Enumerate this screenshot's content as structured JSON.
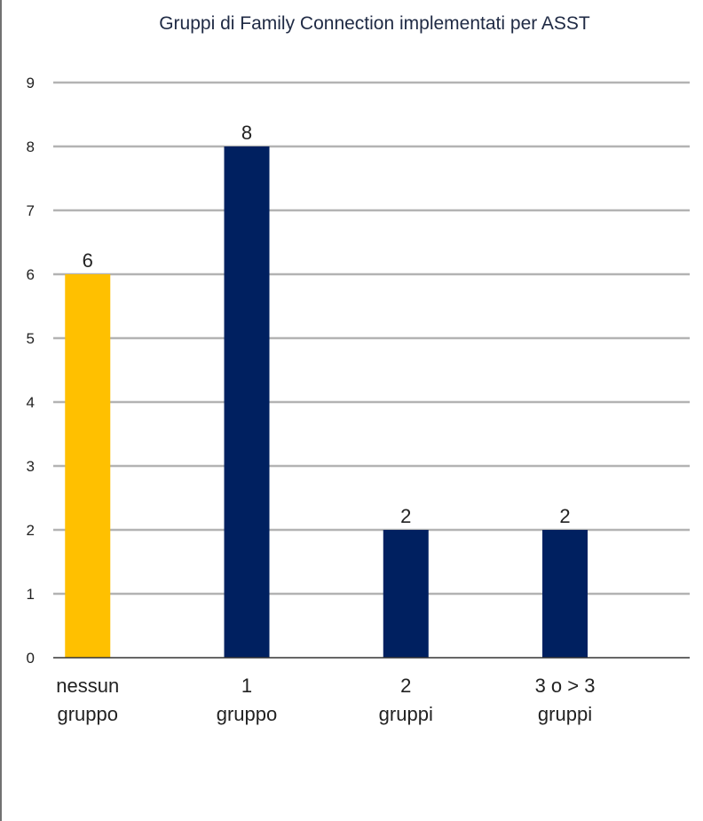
{
  "chart_data": {
    "type": "bar",
    "title": "Gruppi di Family Connection implementati per ASST",
    "categories": [
      [
        "nessun",
        "gruppo"
      ],
      [
        "1",
        "gruppo"
      ],
      [
        "2",
        "gruppi"
      ],
      [
        "3 o > 3",
        "gruppi"
      ]
    ],
    "values": [
      6,
      8,
      2,
      2
    ],
    "data_labels": [
      "6",
      "8",
      "2",
      "2"
    ],
    "bar_colors": [
      "#ffc000",
      "#002060",
      "#002060",
      "#002060"
    ],
    "ylim": [
      0,
      9
    ],
    "yticks": [
      "0",
      "1",
      "2",
      "3",
      "4",
      "5",
      "6",
      "7",
      "8",
      "9"
    ],
    "grid": true,
    "legend": "none",
    "xlabel": "",
    "ylabel": ""
  }
}
